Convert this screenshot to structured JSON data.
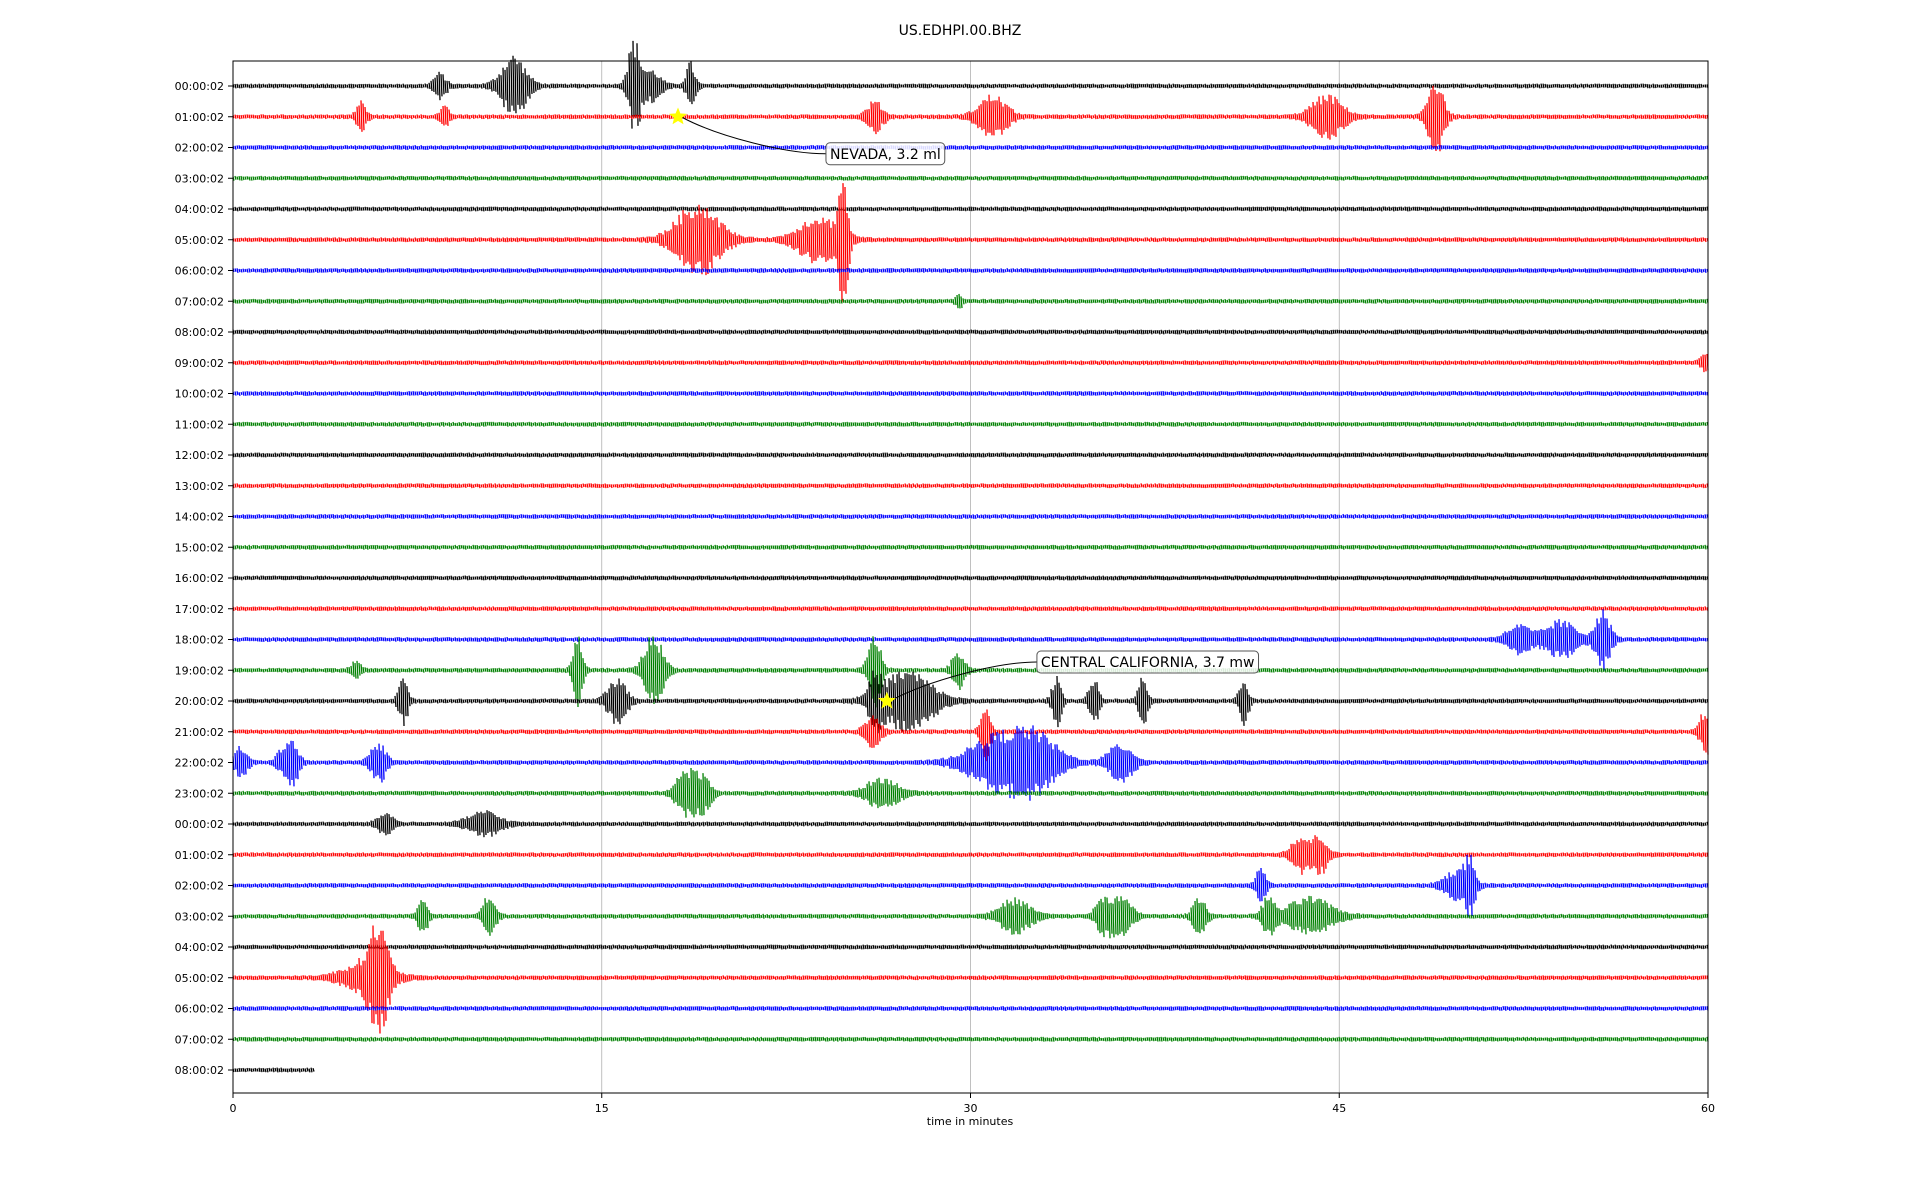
{
  "chart_data": {
    "type": "line",
    "title": "US.EDHPI.00.BHZ",
    "xlabel": "time in minutes",
    "ylabel": "",
    "xlim": [
      0,
      60
    ],
    "x_ticks": [
      "0",
      "15",
      "30",
      "45",
      "60"
    ],
    "grid": "vertical",
    "trace_colors": [
      "#000000",
      "#ff0000",
      "#0000ff",
      "#008000"
    ],
    "row_labels": [
      "00:00:02",
      "01:00:02",
      "02:00:02",
      "03:00:02",
      "04:00:02",
      "05:00:02",
      "06:00:02",
      "07:00:02",
      "08:00:02",
      "09:00:02",
      "10:00:02",
      "11:00:02",
      "12:00:02",
      "13:00:02",
      "14:00:02",
      "15:00:02",
      "16:00:02",
      "17:00:02",
      "18:00:02",
      "19:00:02",
      "20:00:02",
      "21:00:02",
      "22:00:02",
      "23:00:02",
      "00:00:02",
      "01:00:02",
      "02:00:02",
      "03:00:02",
      "04:00:02",
      "05:00:02",
      "06:00:02",
      "07:00:02",
      "08:00:02"
    ],
    "last_row_end_minutes": 3.3,
    "events": [
      {
        "label": "NEVADA, 3.2 ml",
        "row": 1,
        "minute": 18.1
      },
      {
        "label": "CENTRAL CALIFORNIA, 3.7 mw",
        "row": 20,
        "minute": 26.6
      }
    ],
    "bursts": [
      [
        [
          8.4,
          0.8,
          0.4
        ],
        [
          11.4,
          2.0,
          0.8
        ],
        [
          16.3,
          3.0,
          0.4
        ],
        [
          17.0,
          1.0,
          0.6
        ],
        [
          18.6,
          1.5,
          0.3
        ]
      ],
      [
        [
          5.2,
          1.0,
          0.3
        ],
        [
          8.6,
          0.6,
          0.3
        ],
        [
          26.1,
          1.0,
          0.5
        ],
        [
          30.9,
          1.4,
          0.9
        ],
        [
          44.5,
          1.4,
          1.0
        ],
        [
          48.9,
          2.6,
          0.5
        ]
      ],
      [],
      [],
      [],
      [
        [
          18.9,
          2.4,
          1.4
        ],
        [
          23.8,
          1.5,
          1.3
        ],
        [
          24.8,
          3.8,
          0.3
        ]
      ],
      [],
      [
        [
          29.5,
          0.5,
          0.2
        ]
      ],
      [],
      [
        [
          59.9,
          0.6,
          0.3
        ]
      ],
      [],
      [],
      [],
      [],
      [],
      [],
      [],
      [],
      [
        [
          52.3,
          0.9,
          0.8
        ],
        [
          54.0,
          1.2,
          1.0
        ],
        [
          55.7,
          1.9,
          0.5
        ]
      ],
      [
        [
          5.0,
          0.6,
          0.3
        ],
        [
          14.0,
          2.3,
          0.3
        ],
        [
          17.1,
          2.4,
          0.6
        ],
        [
          26.1,
          2.4,
          0.4
        ],
        [
          29.5,
          1.3,
          0.4
        ]
      ],
      [
        [
          6.9,
          1.5,
          0.3
        ],
        [
          15.6,
          1.5,
          0.6
        ],
        [
          26.1,
          1.3,
          0.4
        ],
        [
          27.4,
          2.0,
          1.6
        ],
        [
          33.5,
          1.6,
          0.3
        ],
        [
          35.0,
          1.6,
          0.3
        ],
        [
          37.0,
          1.5,
          0.3
        ],
        [
          41.1,
          1.5,
          0.3
        ]
      ],
      [
        [
          26.0,
          1.0,
          0.5
        ],
        [
          30.6,
          1.8,
          0.3
        ],
        [
          59.9,
          1.4,
          0.4
        ]
      ],
      [
        [
          0.3,
          1.0,
          0.4
        ],
        [
          1.9,
          0.6,
          0.3
        ],
        [
          2.4,
          1.5,
          0.4
        ],
        [
          5.9,
          1.3,
          0.5
        ],
        [
          31.0,
          1.6,
          1.8
        ],
        [
          32.6,
          1.8,
          1.5
        ],
        [
          36.1,
          1.2,
          0.8
        ]
      ],
      [
        [
          18.4,
          1.6,
          0.6
        ],
        [
          19.1,
          1.2,
          0.5
        ],
        [
          26.4,
          1.0,
          1.0
        ]
      ],
      [
        [
          6.2,
          0.7,
          0.5
        ],
        [
          10.2,
          0.8,
          1.0
        ]
      ],
      [
        [
          43.4,
          1.2,
          0.6
        ],
        [
          44.2,
          1.2,
          0.5
        ]
      ],
      [
        [
          41.8,
          1.2,
          0.3
        ],
        [
          49.8,
          1.0,
          0.8
        ],
        [
          50.3,
          1.6,
          0.3
        ]
      ],
      [
        [
          7.7,
          1.3,
          0.3
        ],
        [
          10.4,
          1.3,
          0.4
        ],
        [
          31.8,
          1.1,
          1.0
        ],
        [
          35.4,
          1.1,
          0.5
        ],
        [
          36.1,
          1.2,
          0.7
        ],
        [
          39.3,
          1.4,
          0.4
        ],
        [
          42.1,
          1.2,
          0.4
        ],
        [
          43.8,
          1.2,
          1.4
        ]
      ],
      [],
      [
        [
          5.4,
          1.0,
          1.5
        ],
        [
          5.9,
          3.0,
          0.6
        ]
      ],
      [],
      [],
      []
    ]
  }
}
